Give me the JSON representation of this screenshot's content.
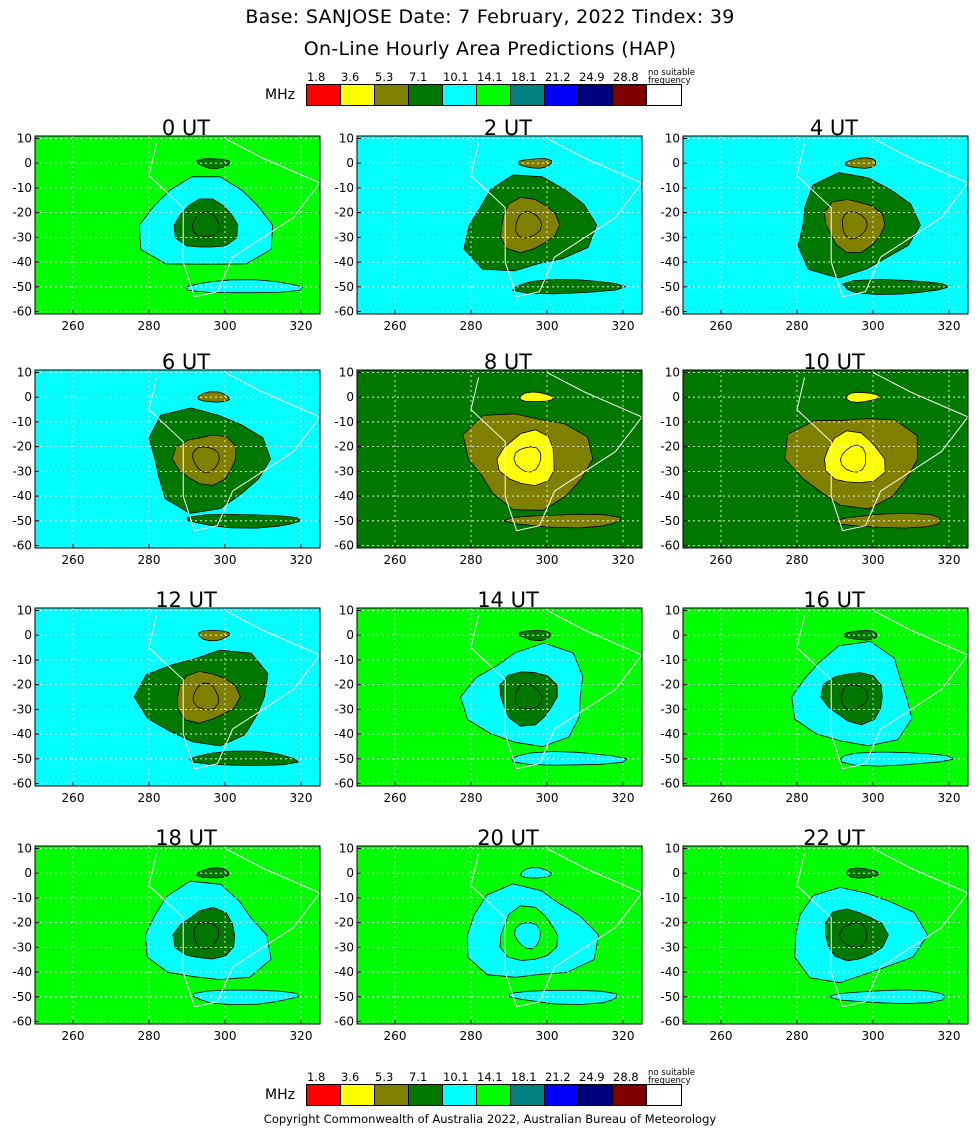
{
  "header": {
    "title": "Base: SANJOSE Date: 7 February, 2022 Tindex: 39",
    "subtitle": "On-Line Hourly Area Predictions (HAP)"
  },
  "legend": {
    "unit": "MHz",
    "values": [
      "1.8",
      "3.6",
      "5.3",
      "7.1",
      "10.1",
      "14.1",
      "18.1",
      "21.2",
      "24.9",
      "28.8"
    ],
    "colors": [
      "#ff0000",
      "#ffff00",
      "#808000",
      "#007800",
      "#00ffff",
      "#00ff00",
      "#008080",
      "#0000ff",
      "#000080",
      "#800000",
      "#ffffff"
    ],
    "no_suitable_line1": "no suitable",
    "no_suitable_line2": "frequency"
  },
  "copyright": "Copyright Commonwealth of Australia 2022, Australian Bureau of Meteorology",
  "chart_data": {
    "type": "heatmap",
    "description_levels": "filled contour maps of predicted usable frequency (MHz)",
    "x_ticks": [
      260,
      280,
      300,
      320
    ],
    "y_ticks": [
      10,
      0,
      -10,
      -20,
      -30,
      -40,
      -50,
      -60
    ],
    "xlim": [
      250,
      325
    ],
    "ylim": [
      -61,
      11
    ],
    "grid": true,
    "panels": [
      {
        "label": "0 UT",
        "background": "#00ff00",
        "center_max": "#007800",
        "ring": "#00ffff"
      },
      {
        "label": "2 UT",
        "background": "#00ffff",
        "center_max": "#808000",
        "ring": "#007800"
      },
      {
        "label": "4 UT",
        "background": "#00ffff",
        "center_max": "#808000",
        "ring": "#007800"
      },
      {
        "label": "6 UT",
        "background": "#00ffff",
        "center_max": "#808000",
        "ring": "#007800"
      },
      {
        "label": "8 UT",
        "background": "#007800",
        "center_max": "#ffff00",
        "ring": "#808000"
      },
      {
        "label": "10 UT",
        "background": "#007800",
        "center_max": "#ffff00",
        "ring": "#808000"
      },
      {
        "label": "12 UT",
        "background": "#00ffff",
        "center_max": "#808000",
        "ring": "#007800"
      },
      {
        "label": "14 UT",
        "background": "#00ff00",
        "center_max": "#007800",
        "ring": "#00ffff"
      },
      {
        "label": "16 UT",
        "background": "#00ff00",
        "center_max": "#007800",
        "ring": "#00ffff"
      },
      {
        "label": "18 UT",
        "background": "#00ff00",
        "center_max": "#007800",
        "ring": "#00ffff"
      },
      {
        "label": "20 UT",
        "background": "#00ff00",
        "center_max": "#00ffff",
        "ring": "#00ffff"
      },
      {
        "label": "22 UT",
        "background": "#00ff00",
        "center_max": "#007800",
        "ring": "#00ffff"
      }
    ]
  }
}
